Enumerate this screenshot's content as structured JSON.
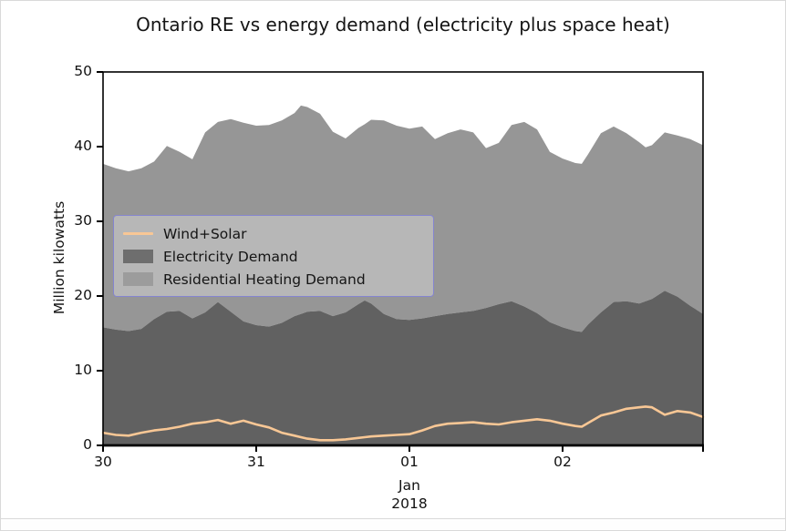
{
  "figure": {
    "title": "Ontario RE vs energy demand (electricity plus space heat)",
    "ylabel": "Million kilowatts",
    "x_sub_label_month": "Jan",
    "x_sub_label_year": "2018"
  },
  "legend": {
    "border_color": "#8585cf",
    "entries": [
      {
        "label": "Wind+Solar",
        "swatch": "line",
        "color": "#f8c795"
      },
      {
        "label": "Electricity Demand",
        "swatch": "patch",
        "color": "#6e6e6e"
      },
      {
        "label": "Residential Heating Demand",
        "swatch": "patch",
        "color": "#9c9c9c"
      }
    ]
  },
  "chart_data": {
    "type": "area",
    "title": "Ontario RE vs energy demand (electricity plus space heat)",
    "xlabel": "",
    "ylabel": "Million kilowatts",
    "ylim": [
      0,
      50
    ],
    "yticks": [
      0,
      10,
      20,
      30,
      40,
      50
    ],
    "xlim": [
      0,
      94
    ],
    "x_unit": "hours since 2017-12-30 00:00",
    "xticks": [
      {
        "hour": 0,
        "label": "30"
      },
      {
        "hour": 24,
        "label": "31"
      },
      {
        "hour": 48,
        "label": "01"
      },
      {
        "hour": 72,
        "label": "02"
      }
    ],
    "grid": false,
    "stacked": true,
    "legend_position": "center left",
    "colors": {
      "wind_solar": "#f8c795",
      "electricity": "#616161",
      "heating": "#969696",
      "axis": "#000000"
    },
    "x_hours": [
      0,
      2,
      4,
      6,
      8,
      10,
      12,
      14,
      16,
      18,
      20,
      22,
      24,
      26,
      28,
      30,
      31,
      32,
      34,
      36,
      38,
      40,
      41,
      42,
      44,
      46,
      48,
      50,
      52,
      54,
      56,
      58,
      60,
      62,
      64,
      66,
      68,
      70,
      72,
      74,
      75,
      76,
      78,
      80,
      82,
      84,
      85,
      86,
      88,
      90,
      92,
      94
    ],
    "series": [
      {
        "name": "Wind+Solar",
        "type": "line",
        "color": "#f8c795",
        "values": [
          1.7,
          1.4,
          1.3,
          1.7,
          2.0,
          2.2,
          2.5,
          2.9,
          3.1,
          3.4,
          2.9,
          3.3,
          2.8,
          2.4,
          1.7,
          1.3,
          1.1,
          0.9,
          0.7,
          0.7,
          0.8,
          1.0,
          1.1,
          1.2,
          1.3,
          1.4,
          1.5,
          2.0,
          2.6,
          2.9,
          3.0,
          3.1,
          2.9,
          2.8,
          3.1,
          3.3,
          3.5,
          3.3,
          2.9,
          2.6,
          2.5,
          3.0,
          4.0,
          4.4,
          4.9,
          5.1,
          5.2,
          5.1,
          4.1,
          4.6,
          4.4,
          3.8
        ]
      },
      {
        "name": "Electricity Demand",
        "type": "area",
        "color": "#616161",
        "values": [
          15.8,
          15.5,
          15.3,
          15.6,
          16.9,
          17.9,
          18.0,
          17.0,
          17.8,
          19.2,
          17.9,
          16.6,
          16.1,
          15.9,
          16.4,
          17.3,
          17.6,
          17.9,
          18.0,
          17.3,
          17.8,
          18.9,
          19.4,
          19.0,
          17.6,
          16.9,
          16.8,
          17.0,
          17.3,
          17.6,
          17.8,
          18.0,
          18.4,
          18.9,
          19.3,
          18.6,
          17.7,
          16.5,
          15.8,
          15.3,
          15.2,
          16.2,
          17.8,
          19.2,
          19.3,
          19.0,
          19.3,
          19.6,
          20.7,
          19.9,
          18.7,
          17.6
        ]
      },
      {
        "name": "Residential Heating Demand",
        "type": "area",
        "stacked_on": "Electricity Demand",
        "color": "#969696",
        "values": [
          21.9,
          21.6,
          21.4,
          21.5,
          21.1,
          22.2,
          21.3,
          21.3,
          24.1,
          24.1,
          25.8,
          26.6,
          26.7,
          27.0,
          27.1,
          27.2,
          27.9,
          27.4,
          26.4,
          24.7,
          23.3,
          23.6,
          23.6,
          24.6,
          25.9,
          25.9,
          25.6,
          25.7,
          23.7,
          24.2,
          24.5,
          23.9,
          21.4,
          21.6,
          23.6,
          24.7,
          24.6,
          22.8,
          22.6,
          22.5,
          22.5,
          22.8,
          24.0,
          23.5,
          22.5,
          21.6,
          20.6,
          20.6,
          21.2,
          21.6,
          22.3,
          22.6
        ]
      }
    ]
  }
}
